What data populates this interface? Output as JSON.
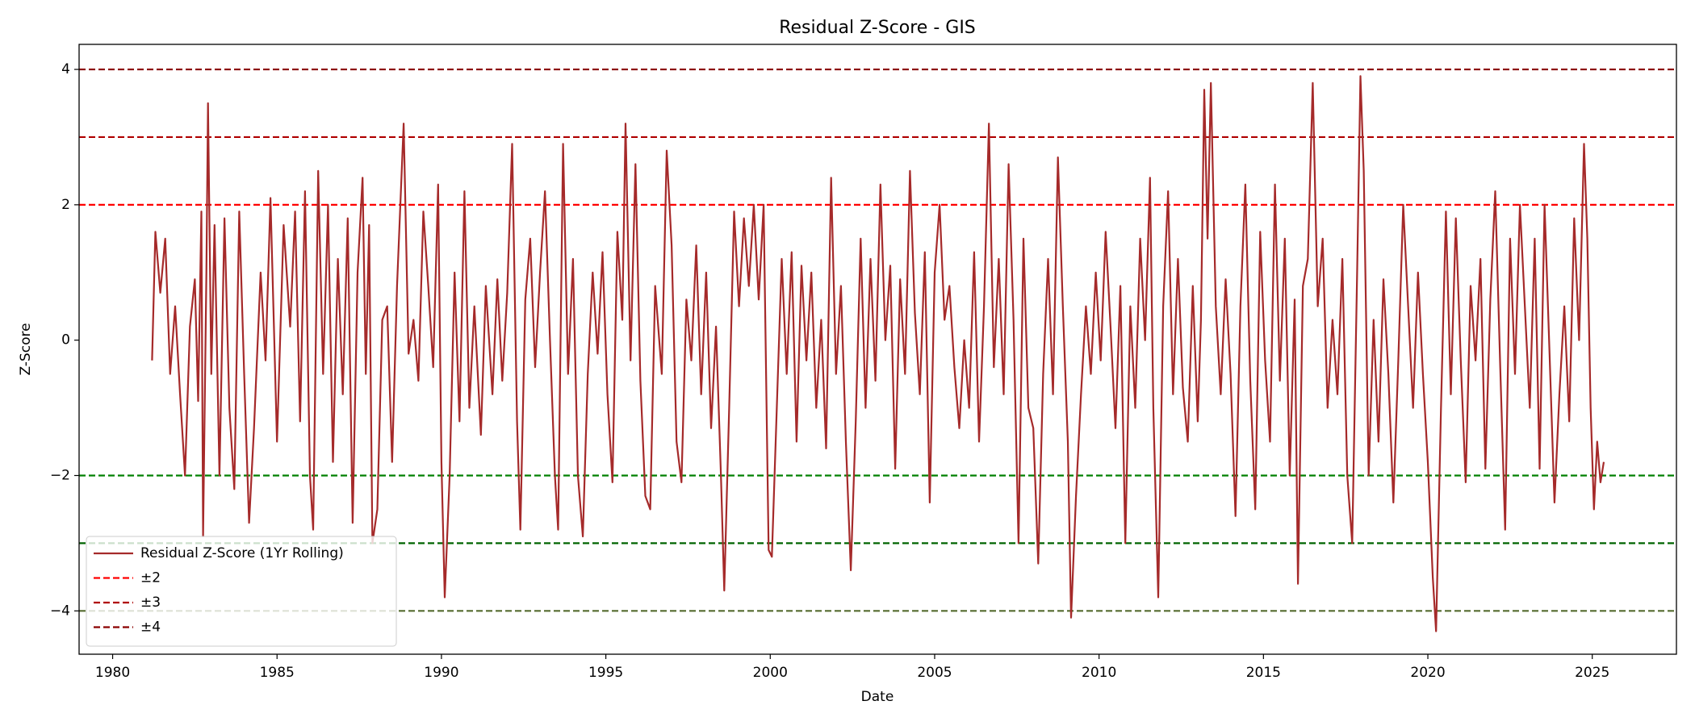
{
  "chart_data": {
    "type": "line",
    "title": "Residual Z-Score - GIS",
    "xlabel": "Date",
    "ylabel": "Z-Score",
    "x": [
      1981.2,
      1981.3,
      1981.45,
      1981.6,
      1981.75,
      1981.9,
      1982.05,
      1982.2,
      1982.35,
      1982.5,
      1982.6,
      1982.7,
      1982.75,
      1982.85,
      1982.9,
      1983.0,
      1983.1,
      1983.25,
      1983.4,
      1983.55,
      1983.7,
      1983.85,
      1984.0,
      1984.15,
      1984.3,
      1984.5,
      1984.65,
      1984.8,
      1985.0,
      1985.2,
      1985.4,
      1985.55,
      1985.7,
      1985.85,
      1986.0,
      1986.1,
      1986.25,
      1986.4,
      1986.55,
      1986.7,
      1986.85,
      1987.0,
      1987.15,
      1987.3,
      1987.45,
      1987.6,
      1987.7,
      1987.8,
      1987.9,
      1988.05,
      1988.2,
      1988.35,
      1988.5,
      1988.65,
      1988.85,
      1989.0,
      1989.15,
      1989.3,
      1989.45,
      1989.6,
      1989.75,
      1989.9,
      1990.0,
      1990.1,
      1990.25,
      1990.4,
      1990.55,
      1990.7,
      1990.85,
      1991.0,
      1991.2,
      1991.35,
      1991.55,
      1991.7,
      1991.85,
      1992.0,
      1992.15,
      1992.3,
      1992.4,
      1992.55,
      1992.7,
      1992.85,
      1993.0,
      1993.15,
      1993.3,
      1993.45,
      1993.55,
      1993.7,
      1993.85,
      1994.0,
      1994.15,
      1994.3,
      1994.45,
      1994.6,
      1994.75,
      1994.9,
      1995.05,
      1995.2,
      1995.35,
      1995.5,
      1995.6,
      1995.75,
      1995.9,
      1996.05,
      1996.2,
      1996.35,
      1996.5,
      1996.7,
      1996.85,
      1997.0,
      1997.15,
      1997.3,
      1997.45,
      1997.6,
      1997.75,
      1997.9,
      1998.05,
      1998.2,
      1998.35,
      1998.5,
      1998.6,
      1998.75,
      1998.9,
      1999.05,
      1999.2,
      1999.35,
      1999.5,
      1999.65,
      1999.8,
      1999.95,
      2000.05,
      2000.2,
      2000.35,
      2000.5,
      2000.65,
      2000.8,
      2000.95,
      2001.1,
      2001.25,
      2001.4,
      2001.55,
      2001.7,
      2001.85,
      2002.0,
      2002.15,
      2002.3,
      2002.45,
      2002.6,
      2002.75,
      2002.9,
      2003.05,
      2003.2,
      2003.35,
      2003.5,
      2003.65,
      2003.8,
      2003.95,
      2004.1,
      2004.25,
      2004.4,
      2004.55,
      2004.7,
      2004.85,
      2005.0,
      2005.15,
      2005.3,
      2005.45,
      2005.6,
      2005.75,
      2005.9,
      2006.05,
      2006.2,
      2006.35,
      2006.5,
      2006.65,
      2006.8,
      2006.95,
      2007.1,
      2007.25,
      2007.4,
      2007.55,
      2007.7,
      2007.85,
      2008.0,
      2008.15,
      2008.3,
      2008.45,
      2008.6,
      2008.75,
      2008.9,
      2009.05,
      2009.15,
      2009.3,
      2009.45,
      2009.6,
      2009.75,
      2009.9,
      2010.05,
      2010.2,
      2010.35,
      2010.5,
      2010.65,
      2010.8,
      2010.95,
      2011.1,
      2011.25,
      2011.4,
      2011.55,
      2011.65,
      2011.8,
      2011.95,
      2012.1,
      2012.25,
      2012.4,
      2012.55,
      2012.7,
      2012.85,
      2013.0,
      2013.1,
      2013.2,
      2013.3,
      2013.4,
      2013.55,
      2013.7,
      2013.85,
      2014.0,
      2014.15,
      2014.3,
      2014.45,
      2014.6,
      2014.75,
      2014.9,
      2015.05,
      2015.2,
      2015.35,
      2015.5,
      2015.65,
      2015.8,
      2015.95,
      2016.05,
      2016.2,
      2016.35,
      2016.5,
      2016.65,
      2016.8,
      2016.95,
      2017.1,
      2017.25,
      2017.4,
      2017.55,
      2017.7,
      2017.85,
      2017.95,
      2018.05,
      2018.2,
      2018.35,
      2018.5,
      2018.65,
      2018.8,
      2018.95,
      2019.1,
      2019.25,
      2019.4,
      2019.55,
      2019.7,
      2019.85,
      2020.0,
      2020.15,
      2020.25,
      2020.4,
      2020.55,
      2020.7,
      2020.85,
      2021.0,
      2021.15,
      2021.3,
      2021.45,
      2021.6,
      2021.75,
      2021.9,
      2022.05,
      2022.2,
      2022.35,
      2022.5,
      2022.65,
      2022.8,
      2022.95,
      2023.1,
      2023.25,
      2023.4,
      2023.55,
      2023.7,
      2023.85,
      2024.0,
      2024.15,
      2024.3,
      2024.45,
      2024.6,
      2024.75,
      2024.85,
      2024.95,
      2025.05,
      2025.15,
      2025.25,
      2025.35
    ],
    "series": [
      {
        "name": "Residual Z-Score (1Yr Rolling)",
        "color": "#a52a2a",
        "values": [
          -0.3,
          1.6,
          0.7,
          1.5,
          -0.5,
          0.5,
          -0.8,
          -2.0,
          0.2,
          0.9,
          -0.9,
          1.9,
          -2.9,
          1.0,
          3.5,
          -0.5,
          1.7,
          -2.0,
          1.8,
          -1.0,
          -2.2,
          1.9,
          -0.5,
          -2.7,
          -1.3,
          1.0,
          -0.3,
          2.1,
          -1.5,
          1.7,
          0.2,
          1.9,
          -1.2,
          2.2,
          -2.0,
          -2.8,
          2.5,
          -0.5,
          2.0,
          -1.8,
          1.2,
          -0.8,
          1.8,
          -2.7,
          1.0,
          2.4,
          -0.5,
          1.7,
          -3.0,
          -2.5,
          0.3,
          0.5,
          -1.8,
          0.8,
          3.2,
          -0.2,
          0.3,
          -0.6,
          1.9,
          0.8,
          -0.4,
          2.3,
          -1.8,
          -3.8,
          -2.0,
          1.0,
          -1.2,
          2.2,
          -1.0,
          0.5,
          -1.4,
          0.8,
          -0.8,
          0.9,
          -0.6,
          0.7,
          2.9,
          -1.2,
          -2.8,
          0.6,
          1.5,
          -0.4,
          1.0,
          2.2,
          0.0,
          -2.0,
          -2.8,
          2.9,
          -0.5,
          1.2,
          -2.0,
          -2.9,
          -0.5,
          1.0,
          -0.2,
          1.3,
          -0.8,
          -2.1,
          1.6,
          0.3,
          3.2,
          -0.3,
          2.6,
          -0.6,
          -2.3,
          -2.5,
          0.8,
          -0.5,
          2.8,
          1.4,
          -1.5,
          -2.1,
          0.6,
          -0.3,
          1.4,
          -0.8,
          1.0,
          -1.3,
          0.2,
          -2.0,
          -3.7,
          -1.0,
          1.9,
          0.5,
          1.8,
          0.8,
          2.0,
          0.6,
          2.0,
          -3.1,
          -3.2,
          -1.0,
          1.2,
          -0.5,
          1.3,
          -1.5,
          1.1,
          -0.3,
          1.0,
          -1.0,
          0.3,
          -1.6,
          2.4,
          -0.5,
          0.8,
          -1.5,
          -3.4,
          -1.2,
          1.5,
          -1.0,
          1.2,
          -0.6,
          2.3,
          0.0,
          1.1,
          -1.9,
          0.9,
          -0.5,
          2.5,
          0.4,
          -0.8,
          1.3,
          -2.4,
          1.0,
          2.0,
          0.3,
          0.8,
          -0.4,
          -1.3,
          0.0,
          -1.0,
          1.3,
          -1.5,
          0.5,
          3.2,
          -0.4,
          1.2,
          -0.8,
          2.6,
          0.3,
          -3.0,
          1.5,
          -1.0,
          -1.3,
          -3.3,
          -0.5,
          1.2,
          -0.8,
          2.7,
          0.5,
          -1.5,
          -4.1,
          -2.3,
          -0.8,
          0.5,
          -0.5,
          1.0,
          -0.3,
          1.6,
          0.2,
          -1.3,
          0.8,
          -3.0,
          0.5,
          -1.0,
          1.5,
          0.0,
          2.4,
          -1.0,
          -3.8,
          0.5,
          2.2,
          -0.8,
          1.2,
          -0.7,
          -1.5,
          0.8,
          -1.2,
          0.3,
          3.7,
          1.5,
          3.8,
          0.5,
          -0.8,
          0.9,
          -0.5,
          -2.6,
          0.5,
          2.3,
          -0.6,
          -2.5,
          1.6,
          -0.3,
          -1.5,
          2.3,
          -0.6,
          1.5,
          -2.0,
          0.6,
          -3.6,
          0.8,
          1.2,
          3.8,
          0.5,
          1.5,
          -1.0,
          0.3,
          -0.8,
          1.2,
          -2.0,
          -3.0,
          1.0,
          3.9,
          2.5,
          -2.0,
          0.3,
          -1.5,
          0.9,
          -0.5,
          -2.4,
          -0.3,
          2.0,
          0.5,
          -1.0,
          1.0,
          -0.5,
          -1.8,
          -3.5,
          -4.3,
          -1.0,
          1.9,
          -0.8,
          1.8,
          -0.3,
          -2.1,
          0.8,
          -0.3,
          1.2,
          -1.9,
          0.6,
          2.2,
          -0.4,
          -2.8,
          1.5,
          -0.5,
          2.0,
          0.5,
          -1.0,
          1.5,
          -1.9,
          2.0,
          -0.2,
          -2.4,
          -0.8,
          0.5,
          -1.2,
          1.8,
          0.0,
          2.9,
          1.5,
          -1.0,
          -2.5,
          -1.5,
          -2.1,
          -1.8
        ]
      }
    ],
    "reference_lines": [
      {
        "name": "±2",
        "values": [
          2,
          -2
        ],
        "colors": [
          "#ff0000",
          "#008000"
        ]
      },
      {
        "name": "±3",
        "values": [
          3,
          -3
        ],
        "colors": [
          "#b00000",
          "#006400"
        ]
      },
      {
        "name": "±4",
        "values": [
          4,
          -4
        ],
        "colors": [
          "#8b0000",
          "#556b2f"
        ]
      }
    ],
    "xlim": [
      1978.98,
      2027.56
    ],
    "ylim": [
      -4.64,
      4.37
    ],
    "xticks": [
      1980,
      1985,
      1990,
      1995,
      2000,
      2005,
      2010,
      2015,
      2020,
      2025
    ],
    "yticks": [
      {
        "value": -4,
        "label": "−4"
      },
      {
        "value": -2,
        "label": "−2"
      },
      0,
      2,
      4
    ],
    "grid": false,
    "legend": "lower left"
  }
}
